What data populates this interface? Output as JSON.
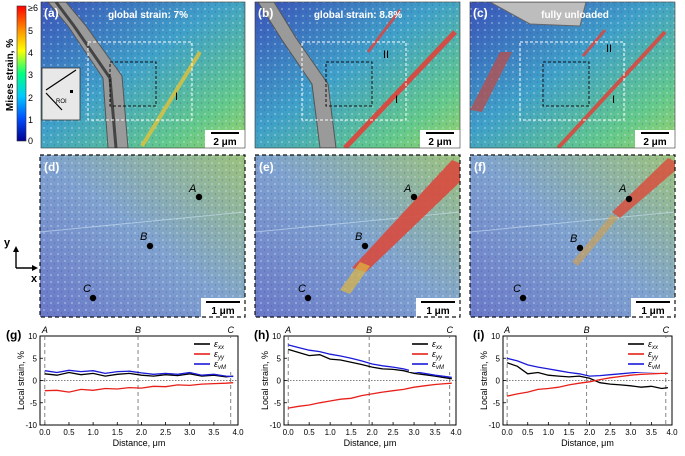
{
  "colorbar": {
    "label": "Mises strain, %",
    "ticks": [
      "≥6",
      "5",
      "4",
      "3",
      "2",
      "1",
      "0"
    ],
    "colors": [
      "#ff0000",
      "#ff8a00",
      "#ffff00",
      "#00ff80",
      "#00c8ff",
      "#0050ff",
      "#000090"
    ]
  },
  "axes_indicator": {
    "y": "y",
    "x": "x"
  },
  "top_panels": [
    {
      "label": "(a)",
      "title": "global strain: 7%",
      "scalebar": "2 μm",
      "inset_label": "ROI",
      "bands": [
        "I"
      ]
    },
    {
      "label": "(b)",
      "title": "global strain: 8.8%",
      "scalebar": "2 μm",
      "bands": [
        "II",
        "I"
      ]
    },
    {
      "label": "(c)",
      "title": "fully unloaded",
      "scalebar": "2 μm",
      "bands": [
        "II",
        "I"
      ]
    }
  ],
  "mid_panels": [
    {
      "label": "(d)",
      "scalebar": "1 μm",
      "points": [
        "A",
        "B",
        "C"
      ]
    },
    {
      "label": "(e)",
      "scalebar": "1 μm",
      "points": [
        "A",
        "B",
        "C"
      ]
    },
    {
      "label": "(f)",
      "scalebar": "1 μm",
      "points": [
        "A",
        "B",
        "C"
      ]
    }
  ],
  "line_colors": {
    "exx": "#000000",
    "eyy": "#e8201a",
    "evm": "#1a1ad8"
  },
  "chart_data": [
    {
      "panel": "(g)",
      "type": "line",
      "xlabel": "Distance, μm",
      "ylabel": "Local strain, %",
      "xlim": [
        -0.1,
        4.0
      ],
      "ylim": [
        -10,
        10
      ],
      "xticks": [
        "0.0",
        "0.5",
        "1.0",
        "1.5",
        "2.0",
        "2.5",
        "3.0",
        "3.5",
        "4.0"
      ],
      "yticks": [
        "10",
        "5",
        "0",
        "-5",
        "-10"
      ],
      "markers": [
        {
          "label": "A",
          "x": 0.0
        },
        {
          "label": "B",
          "x": 1.93
        },
        {
          "label": "C",
          "x": 3.85
        }
      ],
      "x": [
        0.0,
        0.25,
        0.5,
        0.75,
        1.0,
        1.25,
        1.5,
        1.75,
        2.0,
        2.25,
        2.5,
        2.75,
        3.0,
        3.25,
        3.5,
        3.75,
        3.9
      ],
      "series": [
        {
          "name": "ε_xx",
          "legend_main": "ε",
          "legend_sub": "xx",
          "values": [
            1.5,
            1.2,
            1.8,
            1.3,
            1.6,
            1.0,
            1.4,
            1.6,
            1.2,
            1.0,
            1.3,
            1.1,
            1.5,
            1.0,
            1.2,
            0.8,
            1.0
          ]
        },
        {
          "name": "ε_yy",
          "legend_main": "ε",
          "legend_sub": "yy",
          "values": [
            -2.3,
            -2.2,
            -2.6,
            -2.0,
            -2.2,
            -1.8,
            -1.9,
            -1.6,
            -1.7,
            -1.3,
            -1.4,
            -1.0,
            -1.1,
            -0.8,
            -0.7,
            -0.6,
            -0.5
          ]
        },
        {
          "name": "ε_vM",
          "legend_main": "ε",
          "legend_sub": "vM",
          "values": [
            2.2,
            1.8,
            2.3,
            2.0,
            2.2,
            1.6,
            2.0,
            2.1,
            1.7,
            1.4,
            1.6,
            1.4,
            1.8,
            1.2,
            1.4,
            1.0,
            0.9
          ]
        }
      ]
    },
    {
      "panel": "(h)",
      "type": "line",
      "xlabel": "Distance, μm",
      "ylabel": "Local strain, %",
      "xlim": [
        -0.1,
        4.0
      ],
      "ylim": [
        -10,
        10
      ],
      "xticks": [
        "0.0",
        "0.5",
        "1.0",
        "1.5",
        "2.0",
        "2.5",
        "3.0",
        "3.5",
        "4.0"
      ],
      "yticks": [
        "10",
        "5",
        "0",
        "-5",
        "-10"
      ],
      "markers": [
        {
          "label": "A",
          "x": 0.0
        },
        {
          "label": "B",
          "x": 1.93
        },
        {
          "label": "C",
          "x": 3.85
        }
      ],
      "x": [
        0.0,
        0.25,
        0.5,
        0.75,
        1.0,
        1.25,
        1.5,
        1.75,
        2.0,
        2.25,
        2.5,
        2.75,
        3.0,
        3.25,
        3.5,
        3.75,
        3.9
      ],
      "series": [
        {
          "name": "ε_xx",
          "legend_main": "ε",
          "legend_sub": "xx",
          "values": [
            7.0,
            6.3,
            5.6,
            5.8,
            4.8,
            4.6,
            4.1,
            3.6,
            3.0,
            2.6,
            2.5,
            2.2,
            1.6,
            1.3,
            1.0,
            0.6,
            0.4
          ]
        },
        {
          "name": "ε_yy",
          "legend_main": "ε",
          "legend_sub": "yy",
          "values": [
            -6.2,
            -5.8,
            -5.5,
            -5.0,
            -4.6,
            -4.2,
            -4.0,
            -3.4,
            -3.0,
            -2.6,
            -2.3,
            -2.0,
            -1.5,
            -1.2,
            -0.9,
            -0.7,
            -0.6
          ]
        },
        {
          "name": "ε_vM",
          "legend_main": "ε",
          "legend_sub": "vM",
          "values": [
            8.0,
            7.4,
            6.8,
            6.5,
            5.9,
            5.5,
            5.0,
            4.4,
            3.7,
            3.3,
            3.0,
            2.6,
            2.0,
            1.6,
            1.2,
            0.9,
            0.7
          ]
        }
      ]
    },
    {
      "panel": "(i)",
      "type": "line",
      "xlabel": "Distance, μm",
      "ylabel": "Local strain, %",
      "xlim": [
        -0.1,
        4.0
      ],
      "ylim": [
        -10,
        10
      ],
      "xticks": [
        "0.0",
        "0.5",
        "1.0",
        "1.5",
        "2.0",
        "2.5",
        "3.0",
        "3.5",
        "4.0"
      ],
      "yticks": [
        "10",
        "5",
        "0",
        "-5",
        "-10"
      ],
      "markers": [
        {
          "label": "A",
          "x": 0.0
        },
        {
          "label": "B",
          "x": 1.93
        },
        {
          "label": "C",
          "x": 3.85
        }
      ],
      "x": [
        0.0,
        0.25,
        0.5,
        0.75,
        1.0,
        1.25,
        1.5,
        1.75,
        2.0,
        2.25,
        2.5,
        2.75,
        3.0,
        3.25,
        3.5,
        3.75,
        3.9
      ],
      "series": [
        {
          "name": "ε_xx",
          "legend_main": "ε",
          "legend_sub": "xx",
          "values": [
            4.0,
            3.2,
            1.5,
            1.8,
            1.2,
            1.0,
            0.8,
            1.0,
            0.5,
            -0.5,
            -0.8,
            -1.0,
            -1.2,
            -1.5,
            -1.3,
            -1.8,
            -1.6
          ]
        },
        {
          "name": "ε_yy",
          "legend_main": "ε",
          "legend_sub": "yy",
          "values": [
            -3.5,
            -3.0,
            -2.6,
            -2.0,
            -1.8,
            -1.5,
            -1.0,
            -0.6,
            -0.3,
            0.2,
            0.6,
            0.9,
            1.2,
            1.4,
            1.5,
            1.6,
            1.6
          ]
        },
        {
          "name": "ε_vM",
          "legend_main": "ε",
          "legend_sub": "vM",
          "values": [
            5.0,
            4.4,
            3.5,
            3.0,
            2.6,
            2.2,
            1.8,
            1.5,
            1.0,
            1.1,
            1.3,
            1.5,
            1.7,
            1.9,
            2.0,
            2.1,
            2.2
          ]
        }
      ]
    }
  ]
}
